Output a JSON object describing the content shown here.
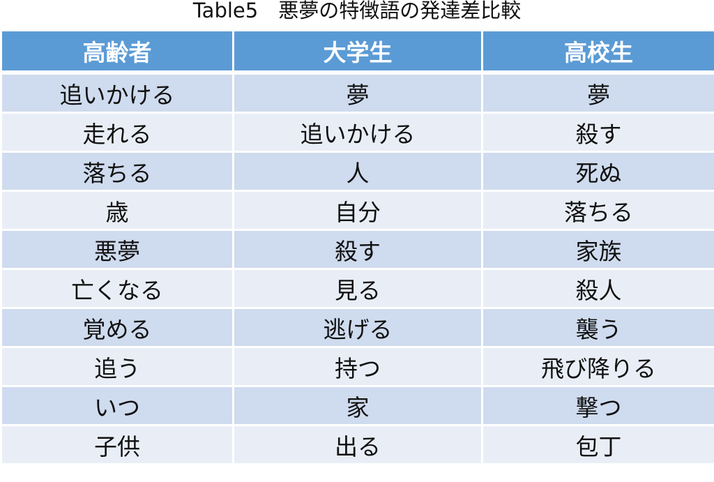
{
  "title": "Table5　悪夢の特徴語の発達差比較",
  "colors": {
    "header": "#5B9BD5",
    "row_odd": "#CFDBEE",
    "row_even": "#E9EEF6"
  },
  "headers": [
    "高齢者",
    "大学生",
    "高校生"
  ],
  "rows": [
    [
      "追いかける",
      "夢",
      "夢"
    ],
    [
      "走れる",
      "追いかける",
      "殺す"
    ],
    [
      "落ちる",
      "人",
      "死ぬ"
    ],
    [
      "歳",
      "自分",
      "落ちる"
    ],
    [
      "悪夢",
      "殺す",
      "家族"
    ],
    [
      "亡くなる",
      "見る",
      "殺人"
    ],
    [
      "覚める",
      "逃げる",
      "襲う"
    ],
    [
      "追う",
      "持つ",
      "飛び降りる"
    ],
    [
      "いつ",
      "家",
      "撃つ"
    ],
    [
      "子供",
      "出る",
      "包丁"
    ]
  ]
}
